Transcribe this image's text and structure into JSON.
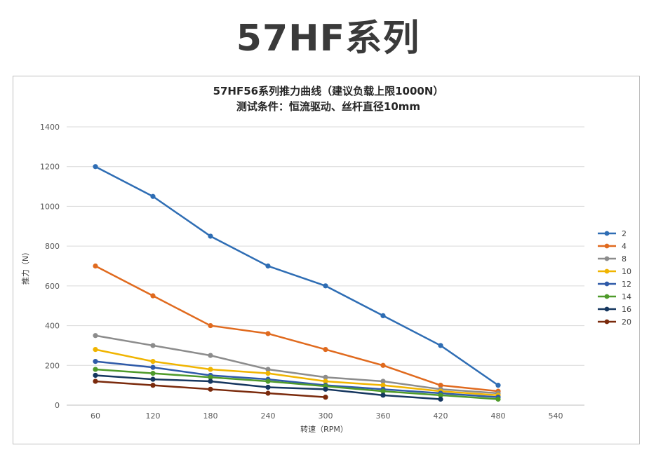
{
  "page": {
    "title": "57HF系列"
  },
  "chart_data": {
    "type": "line",
    "title": "57HF56系列推力曲线（建议负载上限1000N）",
    "subtitle": "测试条件：恒流驱动、丝杆直径10mm",
    "xlabel": "转速（RPM）",
    "ylabel": "推力（N）",
    "categories": [
      60,
      120,
      180,
      240,
      300,
      360,
      420,
      480,
      540
    ],
    "ylim": [
      0,
      1400
    ],
    "yticks": [
      0,
      200,
      400,
      600,
      800,
      1000,
      1200,
      1400
    ],
    "grid": true,
    "legend_position": "right",
    "series": [
      {
        "name": "2",
        "color": "#2e6db4",
        "values": [
          1200,
          1050,
          850,
          700,
          600,
          450,
          300,
          100,
          null
        ]
      },
      {
        "name": "4",
        "color": "#e06a1e",
        "values": [
          700,
          550,
          400,
          360,
          280,
          200,
          100,
          70,
          null
        ]
      },
      {
        "name": "8",
        "color": "#8c8c8c",
        "values": [
          350,
          300,
          250,
          180,
          140,
          120,
          80,
          60,
          null
        ]
      },
      {
        "name": "10",
        "color": "#f0b400",
        "values": [
          280,
          220,
          180,
          160,
          120,
          100,
          70,
          50,
          null
        ]
      },
      {
        "name": "12",
        "color": "#2f5aa8",
        "values": [
          220,
          190,
          150,
          130,
          100,
          80,
          60,
          40,
          null
        ]
      },
      {
        "name": "14",
        "color": "#4e9a2a",
        "values": [
          180,
          160,
          140,
          120,
          95,
          70,
          50,
          30,
          null
        ]
      },
      {
        "name": "16",
        "color": "#15365f",
        "values": [
          150,
          130,
          120,
          90,
          80,
          50,
          30,
          null,
          null
        ]
      },
      {
        "name": "20",
        "color": "#7a2a0c",
        "values": [
          120,
          100,
          80,
          60,
          40,
          null,
          null,
          null,
          null
        ]
      }
    ]
  }
}
